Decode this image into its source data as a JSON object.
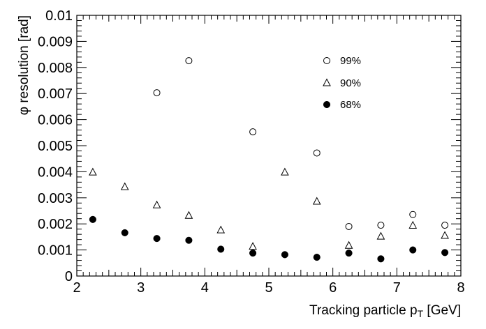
{
  "chart_data": {
    "type": "scatter",
    "xlabel_main": "Tracking particle p",
    "xlabel_sub": "T",
    "xlabel_unit": " [GeV]",
    "ylabel": "φ resolution [rad]",
    "xlim": [
      2,
      8
    ],
    "ylim": [
      0,
      0.01
    ],
    "x_tick_labels": [
      "2",
      "3",
      "4",
      "5",
      "6",
      "7",
      "8"
    ],
    "y_tick_labels": [
      "0",
      "0.001",
      "0.002",
      "0.003",
      "0.004",
      "0.005",
      "0.006",
      "0.007",
      "0.008",
      "0.009",
      "0.01"
    ],
    "grid": false,
    "legend_position": "upper-center",
    "series": [
      {
        "name": "99%",
        "marker": "open-circle",
        "x": [
          3.25,
          3.75,
          4.75,
          5.75,
          6.25,
          6.75,
          7.25,
          7.75
        ],
        "y": [
          0.00703,
          0.00826,
          0.00553,
          0.00472,
          0.0019,
          0.00195,
          0.00236,
          0.00195
        ]
      },
      {
        "name": "90%",
        "marker": "open-triangle",
        "x": [
          2.25,
          2.75,
          3.25,
          3.75,
          4.25,
          4.75,
          5.25,
          5.75,
          6.25,
          6.75,
          7.25,
          7.75
        ],
        "y": [
          0.00398,
          0.00342,
          0.00272,
          0.00232,
          0.00176,
          0.00113,
          0.00398,
          0.00286,
          0.00117,
          0.00152,
          0.00194,
          0.00155
        ]
      },
      {
        "name": "68%",
        "marker": "filled-circle",
        "x": [
          2.25,
          2.75,
          3.25,
          3.75,
          4.25,
          4.75,
          5.25,
          5.75,
          6.25,
          6.75,
          7.25,
          7.75
        ],
        "y": [
          0.00217,
          0.00166,
          0.00144,
          0.00137,
          0.00103,
          0.00088,
          0.00082,
          0.00072,
          0.00088,
          0.00066,
          0.001,
          0.0009
        ]
      }
    ]
  }
}
